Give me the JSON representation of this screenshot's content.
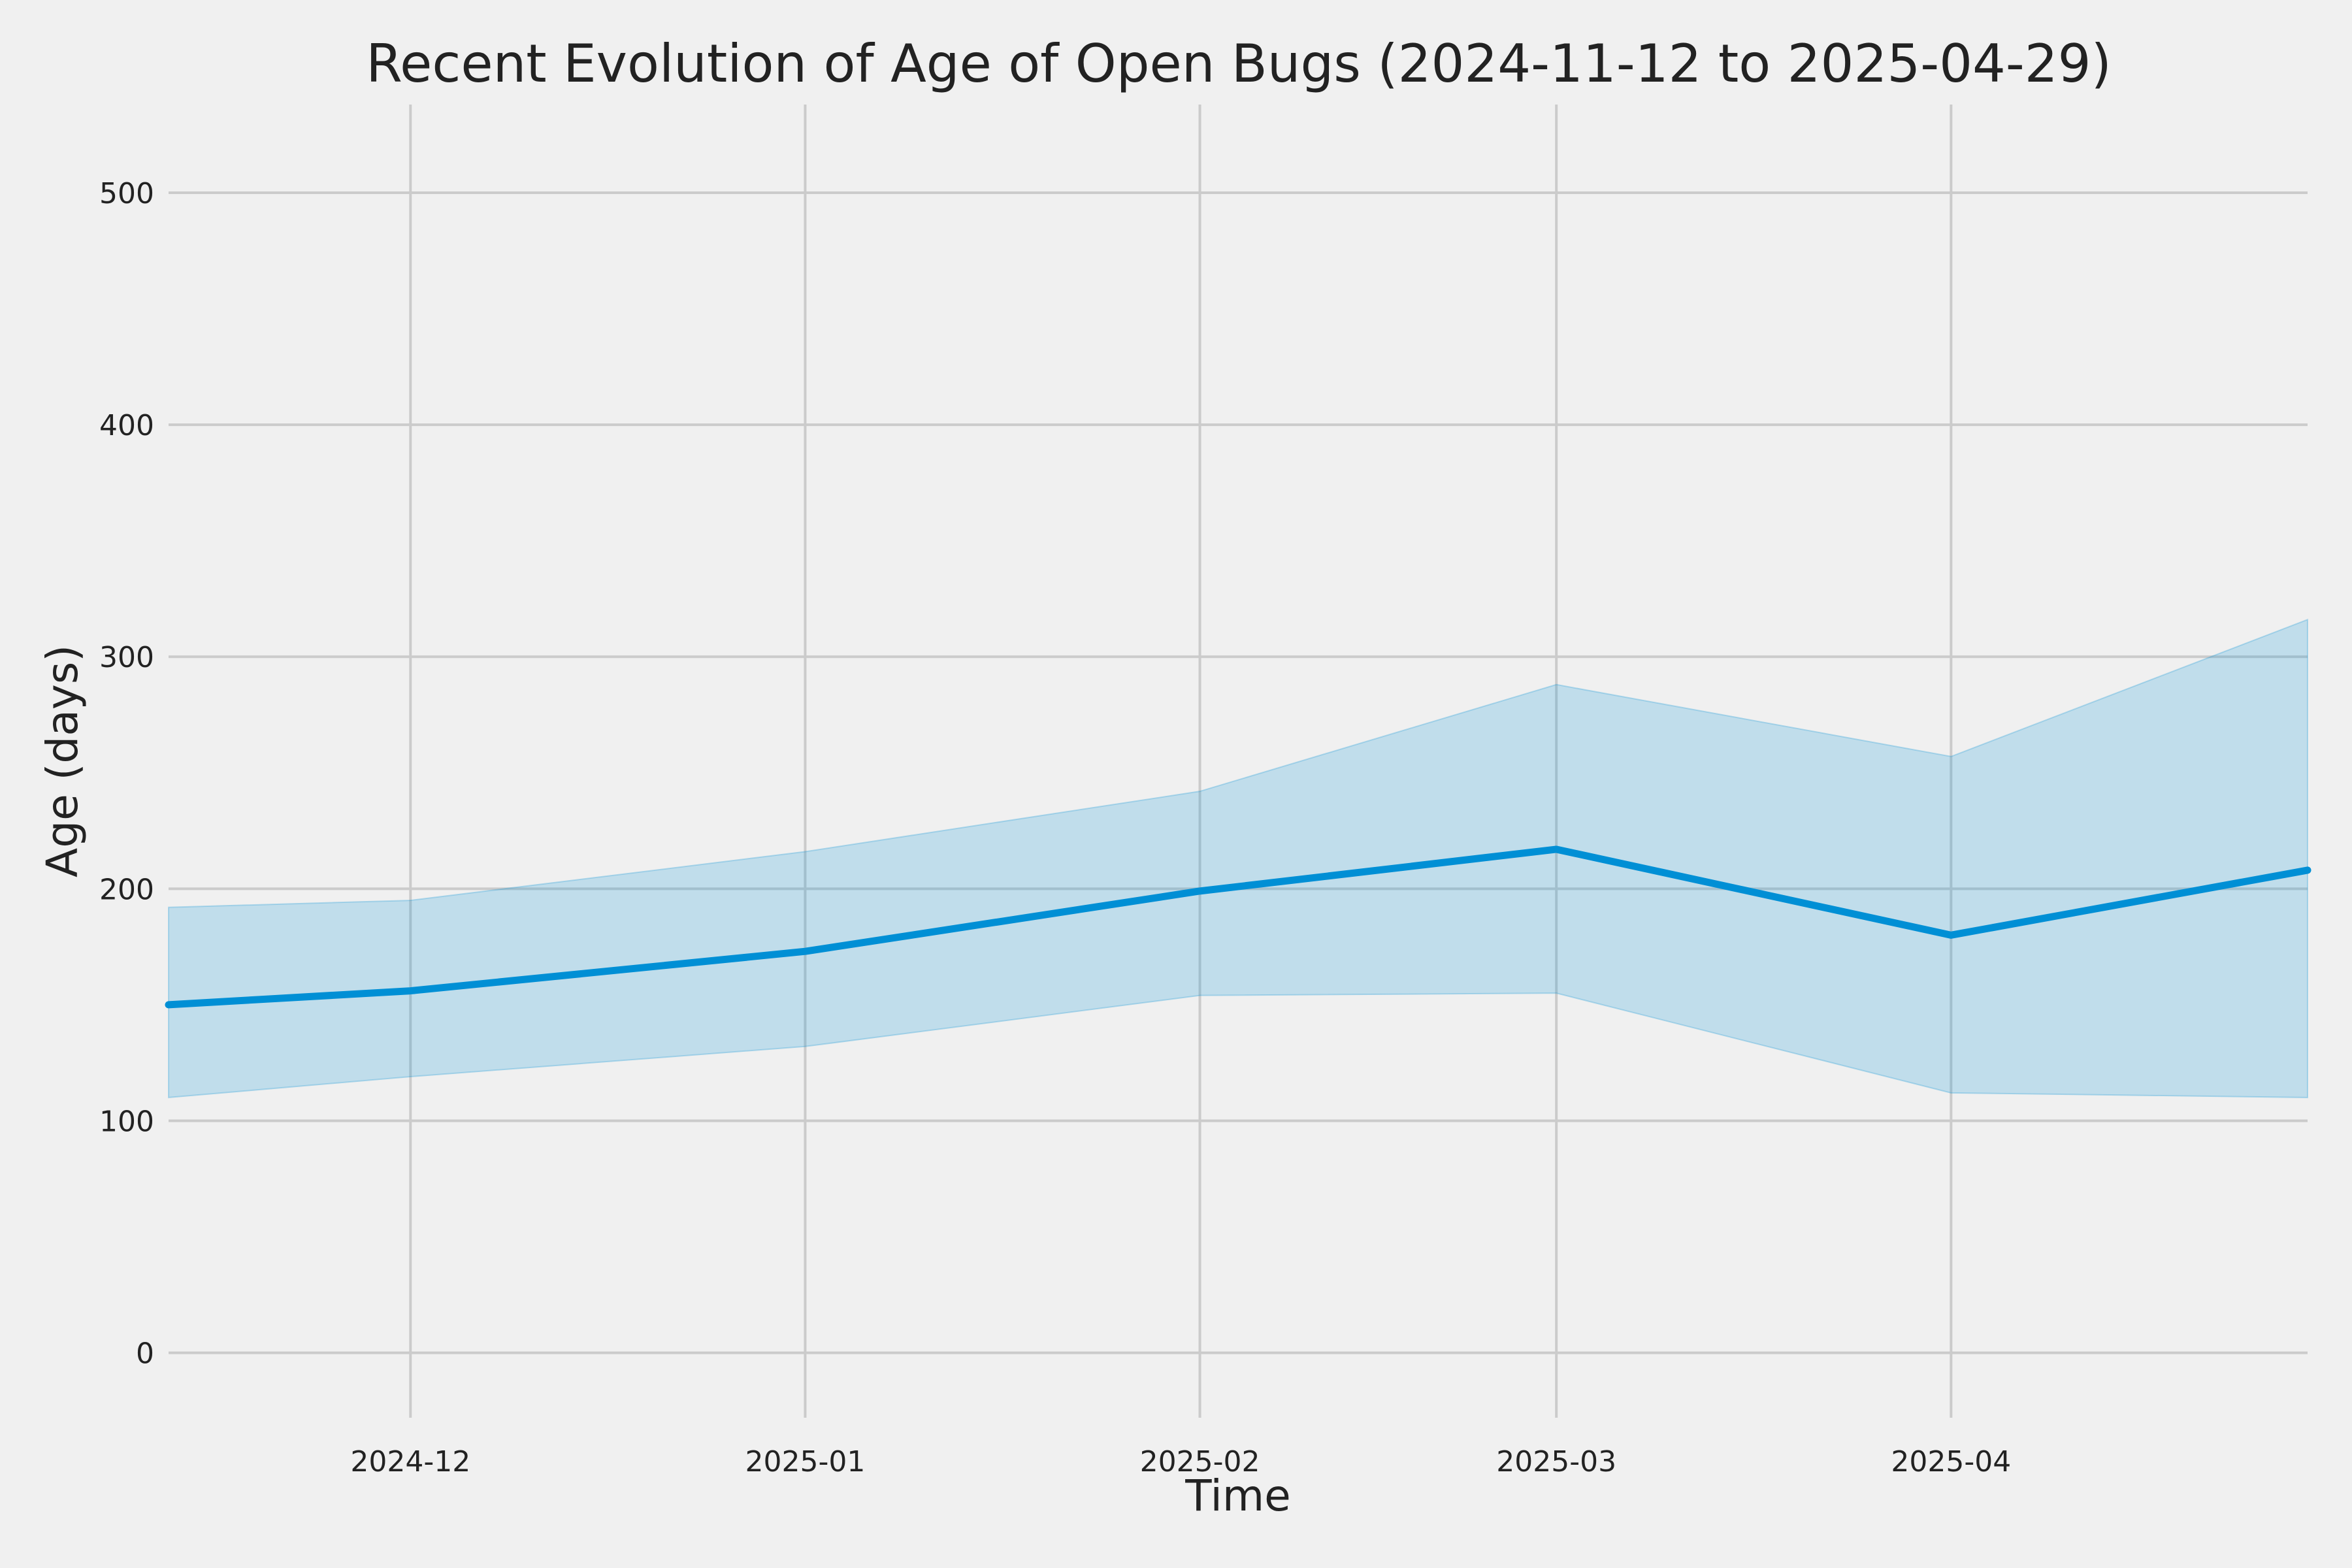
{
  "chart_data": {
    "type": "line",
    "title": "Recent Evolution of Age of Open Bugs (2024-11-12 to 2025-04-29)",
    "xlabel": "Time",
    "ylabel": "Age (days)",
    "x_range": [
      "2024-11-12",
      "2025-04-29"
    ],
    "ylim": [
      -28,
      538
    ],
    "grid": true,
    "x_ticks": [
      {
        "date": "2024-12-01",
        "label": "2024-12"
      },
      {
        "date": "2025-01-01",
        "label": "2025-01"
      },
      {
        "date": "2025-02-01",
        "label": "2025-02"
      },
      {
        "date": "2025-03-01",
        "label": "2025-03"
      },
      {
        "date": "2025-04-01",
        "label": "2025-04"
      }
    ],
    "y_ticks": [
      0,
      100,
      200,
      300,
      400,
      500
    ],
    "series": [
      {
        "points": [
          {
            "x": "2024-11-12",
            "y": 150,
            "lower": 110,
            "upper": 192
          },
          {
            "x": "2024-12-01",
            "y": 156,
            "lower": 119,
            "upper": 195
          },
          {
            "x": "2025-01-01",
            "y": 173,
            "lower": 132,
            "upper": 216
          },
          {
            "x": "2025-02-01",
            "y": 199,
            "lower": 154,
            "upper": 242
          },
          {
            "x": "2025-03-01",
            "y": 217,
            "lower": 155,
            "upper": 288
          },
          {
            "x": "2025-04-01",
            "y": 180,
            "lower": 112,
            "upper": 257
          },
          {
            "x": "2025-04-29",
            "y": 208,
            "lower": 110,
            "upper": 316
          }
        ]
      }
    ],
    "colors": {
      "line": "#008fd5",
      "band": "#008fd5",
      "grid": "#cbcbcb",
      "background": "#f0f0f0",
      "text": "#222222"
    }
  }
}
